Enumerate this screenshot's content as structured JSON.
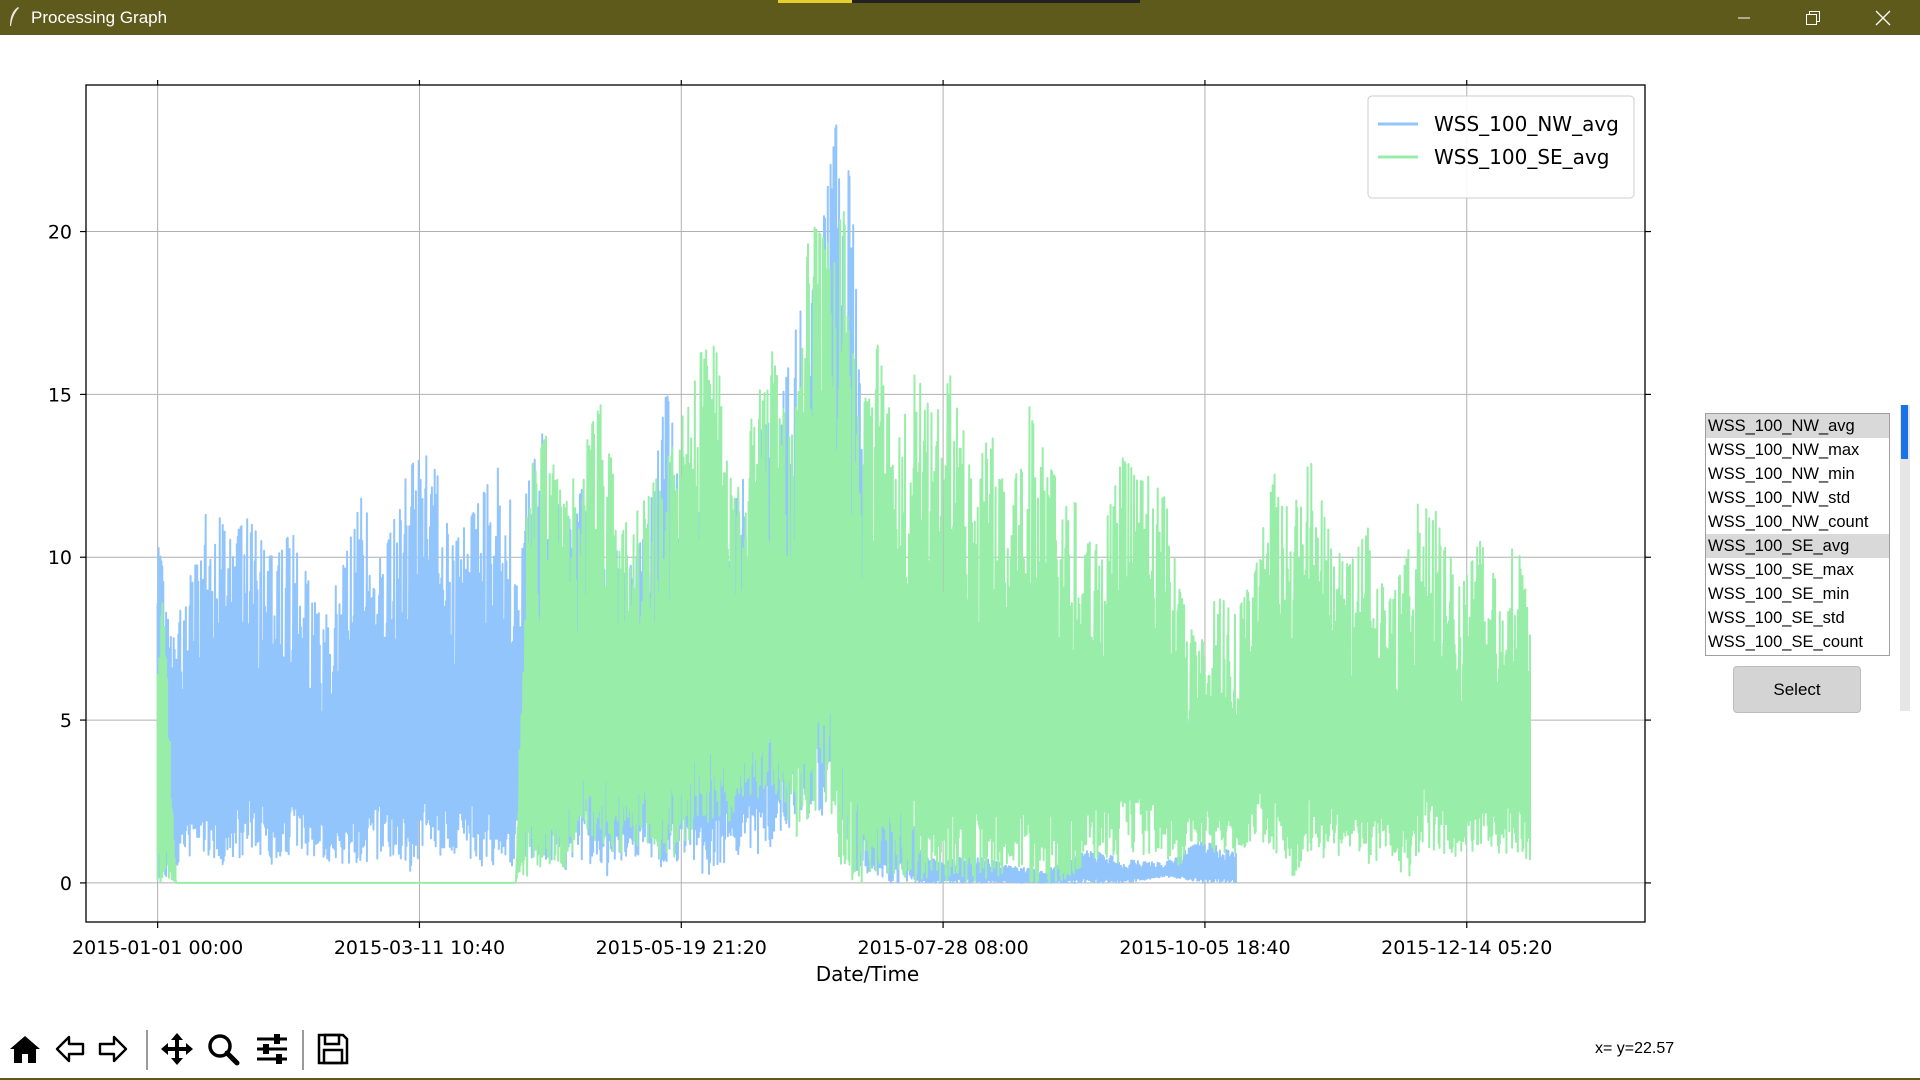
{
  "window": {
    "title": "Processing Graph",
    "minimize_icon": "minimize-icon",
    "restore_icon": "restore-icon",
    "close_icon": "close-icon"
  },
  "chart_data": {
    "type": "line",
    "xlabel": "Date/Time",
    "ylabel": "",
    "x_tick_labels": [
      "2015-01-01 00:00",
      "2015-03-11 10:40",
      "2015-05-19 21:20",
      "2015-07-28 08:00",
      "2015-10-05 18:40",
      "2015-12-14 05:20"
    ],
    "x_ticks": [
      "2015-01-01T00:00",
      "2015-03-11T10:40",
      "2015-05-19T21:20",
      "2015-07-28T08:00",
      "2015-10-05T18:40",
      "2015-12-14T05:20"
    ],
    "xlim": [
      "2014-12-13T00:00",
      "2016-01-30T12:00"
    ],
    "y_ticks": [
      0,
      5,
      10,
      15,
      20
    ],
    "ylim": [
      -1.2,
      24.5
    ],
    "grid": true,
    "legend_position": "top-right",
    "series": [
      {
        "name": "WSS_100_NW_avg",
        "color": "#93c5fd",
        "x": [
          "2015-01-01",
          "2015-01-05",
          "2015-01-10",
          "2015-01-15",
          "2015-01-20",
          "2015-01-25",
          "2015-01-31",
          "2015-02-06",
          "2015-02-12",
          "2015-02-18",
          "2015-02-24",
          "2015-03-02",
          "2015-03-08",
          "2015-03-14",
          "2015-03-20",
          "2015-03-26",
          "2015-04-01",
          "2015-04-07",
          "2015-04-13",
          "2015-04-19",
          "2015-04-25",
          "2015-05-01",
          "2015-05-06",
          "2015-05-11",
          "2015-05-16",
          "2015-05-21",
          "2015-05-26",
          "2015-05-31",
          "2015-06-05",
          "2015-06-10",
          "2015-06-15",
          "2015-06-20",
          "2015-06-25",
          "2015-06-30",
          "2015-07-04",
          "2015-07-08",
          "2015-07-12",
          "2015-07-16",
          "2015-07-22",
          "2015-07-28",
          "2015-08-05",
          "2015-08-15",
          "2015-08-25",
          "2015-09-05",
          "2015-09-15",
          "2015-09-25",
          "2015-10-05",
          "2015-10-14"
        ],
        "y_max": [
          10.5,
          8.0,
          9.5,
          11.9,
          10.5,
          11.2,
          10.0,
          10.8,
          8.5,
          9.2,
          11.8,
          10.0,
          12.5,
          13.8,
          10.3,
          11.4,
          12.8,
          11.0,
          14.2,
          10.8,
          12.5,
          10.5,
          9.6,
          11.0,
          15.1,
          11.8,
          11.2,
          10.6,
          12.3,
          13.9,
          14.5,
          17.4,
          18.9,
          23.4,
          21.5,
          11.2,
          8.0,
          6.0,
          1.0,
          0.6,
          0.9,
          0.5,
          0.4,
          1.0,
          0.7,
          0.6,
          1.3,
          0.9
        ],
        "y_min": [
          0.0,
          0.3,
          0.9,
          0.7,
          0.5,
          0.9,
          0.5,
          0.9,
          0.8,
          0.5,
          0.6,
          0.8,
          0.3,
          0.7,
          0.9,
          0.6,
          0.4,
          0.6,
          0.8,
          0.4,
          0.6,
          0.0,
          0.5,
          0.9,
          0.3,
          0.6,
          0.2,
          0.4,
          0.6,
          0.7,
          1.4,
          1.8,
          2.0,
          2.0,
          0.5,
          0.0,
          0.0,
          0.0,
          0.0,
          0.0,
          0.0,
          0.0,
          0.0,
          0.0,
          0.0,
          0.2,
          0.0,
          0.0
        ]
      },
      {
        "name": "WSS_100_SE_avg",
        "color": "#98eea8",
        "x": [
          "2015-01-01",
          "2015-01-03",
          "2015-01-06",
          "2015-01-15",
          "2015-02-01",
          "2015-03-01",
          "2015-03-20",
          "2015-04-06",
          "2015-04-09",
          "2015-04-14",
          "2015-04-19",
          "2015-04-24",
          "2015-04-29",
          "2015-05-04",
          "2015-05-09",
          "2015-05-14",
          "2015-05-19",
          "2015-05-24",
          "2015-05-29",
          "2015-06-03",
          "2015-06-08",
          "2015-06-13",
          "2015-06-18",
          "2015-06-23",
          "2015-06-28",
          "2015-07-02",
          "2015-07-06",
          "2015-07-11",
          "2015-07-16",
          "2015-07-21",
          "2015-07-26",
          "2015-07-31",
          "2015-08-05",
          "2015-08-10",
          "2015-08-15",
          "2015-08-20",
          "2015-08-25",
          "2015-08-30",
          "2015-09-04",
          "2015-09-09",
          "2015-09-14",
          "2015-09-19",
          "2015-09-24",
          "2015-09-29",
          "2015-10-04",
          "2015-10-09",
          "2015-10-14",
          "2015-10-19",
          "2015-10-24",
          "2015-10-29",
          "2015-11-03",
          "2015-11-08",
          "2015-11-13",
          "2015-11-18",
          "2015-11-23",
          "2015-11-28",
          "2015-12-03",
          "2015-12-08",
          "2015-12-13",
          "2015-12-18",
          "2015-12-23",
          "2015-12-28",
          "2015-12-31"
        ],
        "y_max": [
          10.4,
          7.5,
          0.0,
          0.0,
          0.0,
          0.0,
          0.0,
          0.0,
          12.5,
          13.7,
          11.5,
          13.5,
          14.8,
          10.9,
          11.5,
          12.6,
          13.7,
          16.2,
          16.5,
          11.8,
          14.5,
          16.3,
          13.4,
          20.3,
          19.6,
          20.6,
          14.0,
          16.5,
          13.3,
          15.7,
          14.2,
          15.8,
          12.3,
          13.9,
          11.4,
          14.7,
          12.9,
          11.8,
          11.5,
          10.8,
          13.1,
          12.3,
          12.8,
          9.0,
          7.1,
          8.9,
          8.2,
          9.5,
          12.6,
          11.4,
          13.1,
          10.6,
          9.7,
          10.9,
          8.6,
          9.8,
          12.6,
          10.6,
          9.1,
          10.6,
          8.9,
          11.0,
          7.6
        ],
        "y_min": [
          0.0,
          0.0,
          0.0,
          0.0,
          0.0,
          0.0,
          0.0,
          0.0,
          0.2,
          0.6,
          0.4,
          1.5,
          0.9,
          0.8,
          1.2,
          0.6,
          0.8,
          1.5,
          2.0,
          1.8,
          2.5,
          3.0,
          1.2,
          2.0,
          2.5,
          0.0,
          0.0,
          0.0,
          0.3,
          0.0,
          0.0,
          0.0,
          0.0,
          0.0,
          0.5,
          0.0,
          0.0,
          0.0,
          0.4,
          0.8,
          0.5,
          0.8,
          0.6,
          0.5,
          1.2,
          0.9,
          0.8,
          1.4,
          1.0,
          0.0,
          0.9,
          0.6,
          1.1,
          0.5,
          0.8,
          0.0,
          1.0,
          0.8,
          0.7,
          1.2,
          0.9,
          0.8,
          0.7
        ]
      }
    ]
  },
  "listbox": {
    "items": [
      "WSS_100_NW_avg",
      "WSS_100_NW_max",
      "WSS_100_NW_min",
      "WSS_100_NW_std",
      "WSS_100_NW_count",
      "WSS_100_SE_avg",
      "WSS_100_SE_max",
      "WSS_100_SE_min",
      "WSS_100_SE_std",
      "WSS_100_SE_count"
    ],
    "selected": [
      0,
      5
    ]
  },
  "select_button": {
    "label": "Select"
  },
  "toolbar": {
    "tools": [
      {
        "name": "home-icon",
        "label": ""
      },
      {
        "name": "back-arrow-icon",
        "label": ""
      },
      {
        "name": "forward-arrow-icon",
        "label": ""
      },
      {
        "name": "pan-move-icon",
        "label": ""
      },
      {
        "name": "zoom-magnifier-icon",
        "label": ""
      },
      {
        "name": "configure-subplots-icon",
        "label": ""
      },
      {
        "name": "save-disk-icon",
        "label": ""
      }
    ]
  },
  "status": {
    "coords": "x= y=22.57"
  }
}
